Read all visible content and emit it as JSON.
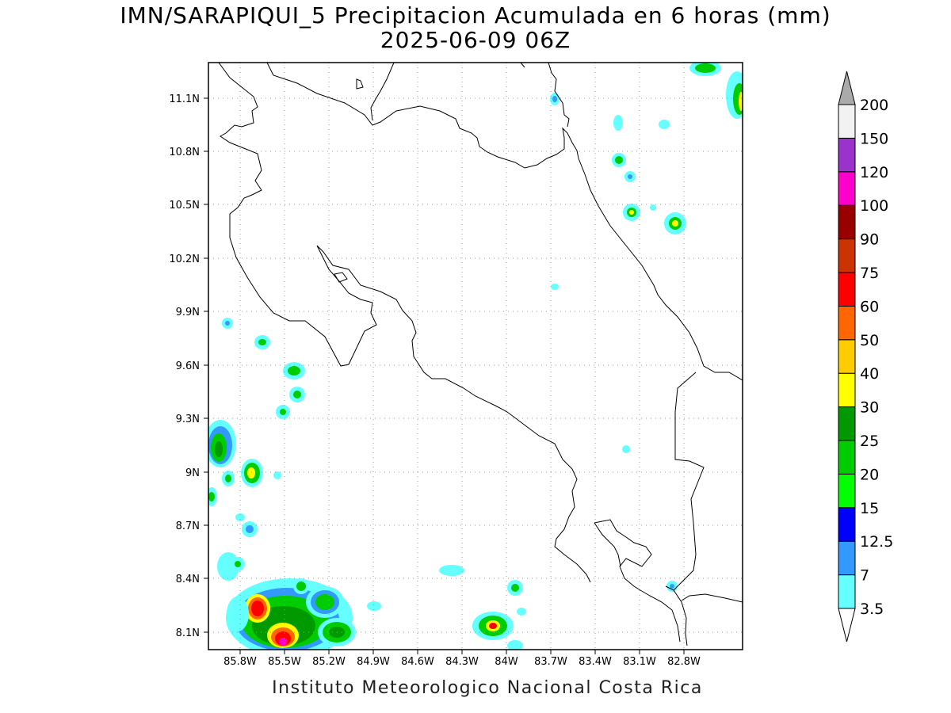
{
  "title": {
    "line1": "IMN/SARAPIQUI_5 Precipitacion Acumulada en 6 horas (mm)",
    "line2": "2025-06-09 06Z"
  },
  "footer": "Instituto Meteorologico Nacional Costa Rica",
  "map": {
    "lon_range": [
      -86.08,
      -82.48
    ],
    "lat_range": [
      8.0,
      11.3
    ],
    "lat_ticks": [
      "11.1N",
      "10.8N",
      "10.5N",
      "10.2N",
      "9.9N",
      "9.6N",
      "9.3N",
      "9N",
      "8.7N",
      "8.4N",
      "8.1N"
    ],
    "lon_ticks": [
      "85.8W",
      "85.5W",
      "85.2W",
      "84.9W",
      "84.6W",
      "84.3W",
      "84W",
      "83.7W",
      "83.4W",
      "83.1W",
      "82.8W"
    ],
    "grid": true
  },
  "colorbar": {
    "levels": [
      "3.5",
      "7",
      "12.5",
      "15",
      "20",
      "25",
      "30",
      "40",
      "50",
      "60",
      "75",
      "90",
      "100",
      "120",
      "150",
      "200"
    ],
    "colors": [
      "#66ffff",
      "#3399ff",
      "#0000ff",
      "#00ff00",
      "#00cc00",
      "#009900",
      "#ffff00",
      "#ffcc00",
      "#ff6600",
      "#ff0000",
      "#cc3300",
      "#990000",
      "#ff00cc",
      "#9933cc",
      "#f2f2f2",
      "#aaaaaa"
    ]
  }
}
